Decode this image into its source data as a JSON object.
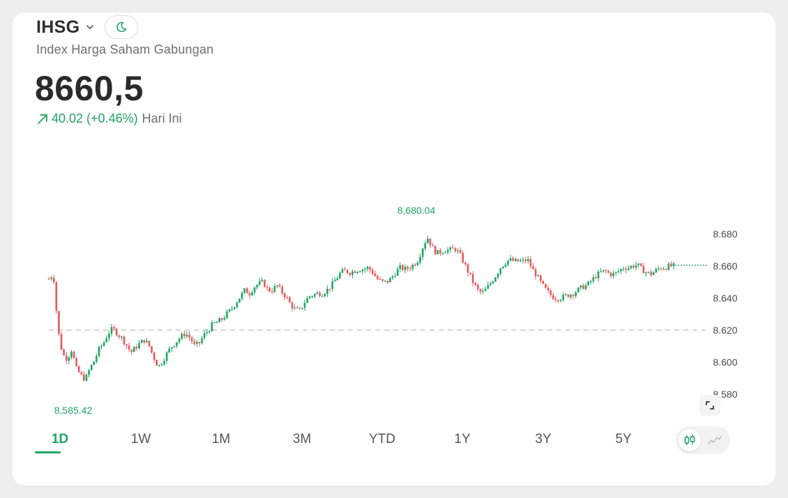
{
  "header": {
    "ticker": "IHSG",
    "subtitle": "Index Harga Saham Gabungan",
    "price": "8660,5",
    "change_text": "40.02 (+0.46%)",
    "change_period": "Hari Ini"
  },
  "icons": {
    "ticker_dropdown": "chevron-down-icon",
    "theme": "moon-icon",
    "change": "arrow-up-right-icon",
    "expand": "expand-icon",
    "candlestick_mode": "candlestick-icon",
    "line_mode": "line-chart-icon"
  },
  "colors": {
    "up": "#1fa463",
    "down": "#e8585a",
    "text": "#2b2b2b",
    "muted": "#6e6e6e"
  },
  "tabs": [
    "1D",
    "1W",
    "1M",
    "3M",
    "YTD",
    "1Y",
    "3Y",
    "5Y"
  ],
  "active_tab": "1D",
  "chart_data": {
    "type": "candlestick",
    "y_axis": {
      "ticks": [
        8580,
        8600,
        8620,
        8640,
        8660,
        8680
      ],
      "tick_labels": [
        "8.580",
        "8.600",
        "8.620",
        "8.640",
        "8.660",
        "8.680"
      ],
      "range": [
        8573,
        8699
      ]
    },
    "high_label": "8,680.04",
    "low_label": "8,585.42",
    "reference_line": 8620,
    "last_price": 8660.5,
    "path_y": [
      8652,
      8655,
      8620,
      8605,
      8602,
      8608,
      8596,
      8592,
      8589,
      8596,
      8601,
      8608,
      8612,
      8618,
      8621,
      8618,
      8615,
      8611,
      8606,
      8609,
      8612,
      8614,
      8610,
      8603,
      8597,
      8601,
      8606,
      8610,
      8613,
      8616,
      8618,
      8615,
      8610,
      8612,
      8617,
      8620,
      8624,
      8625,
      8627,
      8630,
      8633,
      8637,
      8641,
      8645,
      8643,
      8647,
      8649,
      8650,
      8645,
      8645,
      8648,
      8644,
      8641,
      8636,
      8633,
      8632,
      8637,
      8641,
      8642,
      8643,
      8643,
      8645,
      8648,
      8652,
      8656,
      8657,
      8656,
      8657,
      8658,
      8658,
      8659,
      8656,
      8652,
      8650,
      8650,
      8652,
      8656,
      8659,
      8658,
      8659,
      8661,
      8664,
      8672,
      8678,
      8672,
      8668,
      8669,
      8670,
      8670,
      8671,
      8668,
      8662,
      8656,
      8650,
      8645,
      8643,
      8646,
      8650,
      8654,
      8659,
      8662,
      8664,
      8663,
      8663,
      8663,
      8664,
      8658,
      8654,
      8649,
      8645,
      8642,
      8640,
      8640,
      8641,
      8642,
      8643,
      8645,
      8647,
      8648,
      8651,
      8654,
      8656,
      8657,
      8655,
      8655,
      8657,
      8659,
      8659,
      8660,
      8661,
      8658,
      8656,
      8655,
      8657,
      8659,
      8659,
      8660,
      8660
    ],
    "x_start_time_index": 0,
    "candle_count": 250
  }
}
